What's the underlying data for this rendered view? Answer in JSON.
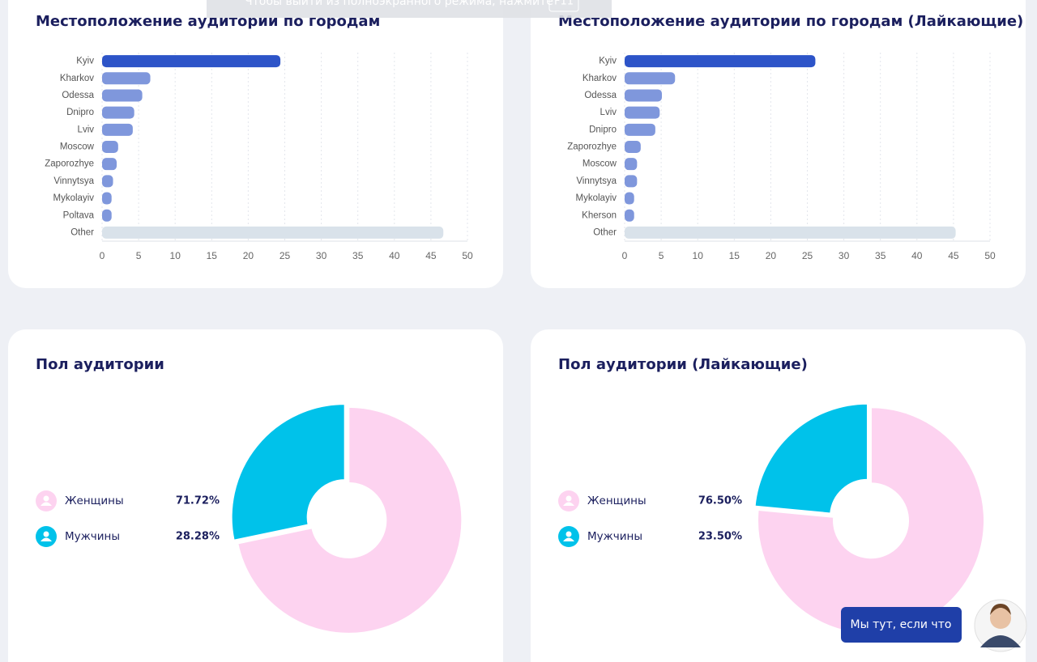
{
  "chart_data": [
    {
      "type": "hbar",
      "title": "Местоположение аудитории по городам",
      "categories": [
        "Kyiv",
        "Kharkov",
        "Odessa",
        "Dnipro",
        "Lviv",
        "Moscow",
        "Zaporozhye",
        "Vinnytsya",
        "Mykolayiv",
        "Poltava",
        "Other"
      ],
      "values": [
        24.4,
        6.6,
        5.5,
        4.4,
        4.2,
        2.2,
        2.0,
        1.5,
        1.3,
        1.3,
        46.7
      ],
      "colors": [
        "#2d54c8",
        "#7f97dc",
        "#7f97dc",
        "#7f97dc",
        "#7f97dc",
        "#7f97dc",
        "#7f97dc",
        "#7f97dc",
        "#7f97dc",
        "#7f97dc",
        "#d9e2ea"
      ],
      "xlim": [
        0,
        50
      ],
      "xticks": [
        0,
        5,
        10,
        15,
        20,
        25,
        30,
        35,
        40,
        45,
        50
      ],
      "grid": true
    },
    {
      "type": "hbar",
      "title": "Местоположение аудитории по городам (Лайкающие)",
      "categories": [
        "Kyiv",
        "Kharkov",
        "Odessa",
        "Lviv",
        "Dnipro",
        "Zaporozhye",
        "Moscow",
        "Vinnytsya",
        "Mykolayiv",
        "Kherson",
        "Other"
      ],
      "values": [
        26.1,
        6.9,
        5.1,
        4.8,
        4.2,
        2.2,
        1.7,
        1.7,
        1.3,
        1.3,
        45.3
      ],
      "colors": [
        "#2d54c8",
        "#7f97dc",
        "#7f97dc",
        "#7f97dc",
        "#7f97dc",
        "#7f97dc",
        "#7f97dc",
        "#7f97dc",
        "#7f97dc",
        "#7f97dc",
        "#d9e2ea"
      ],
      "xlim": [
        0,
        50
      ],
      "xticks": [
        0,
        5,
        10,
        15,
        20,
        25,
        30,
        35,
        40,
        45,
        50
      ],
      "grid": true
    },
    {
      "type": "donut",
      "title": "Пол аудитории",
      "categories": [
        "Женщины",
        "Мужчины"
      ],
      "values": [
        71.72,
        28.28
      ],
      "value_labels": [
        "71.72%",
        "28.28%"
      ],
      "colors": [
        "#fdd3f0",
        "#00c2ea"
      ]
    },
    {
      "type": "donut",
      "title": "Пол аудитории (Лайкающие)",
      "categories": [
        "Женщины",
        "Мужчины"
      ],
      "values": [
        76.5,
        23.5
      ],
      "value_labels": [
        "76.50%",
        "23.50%"
      ],
      "colors": [
        "#fdd3f0",
        "#00c2ea"
      ]
    }
  ],
  "chat_button": "Мы тут, если что",
  "fullscreen_notice": {
    "text": "Чтобы выйти из полноэкранного режима, нажмите",
    "key": "F11"
  }
}
